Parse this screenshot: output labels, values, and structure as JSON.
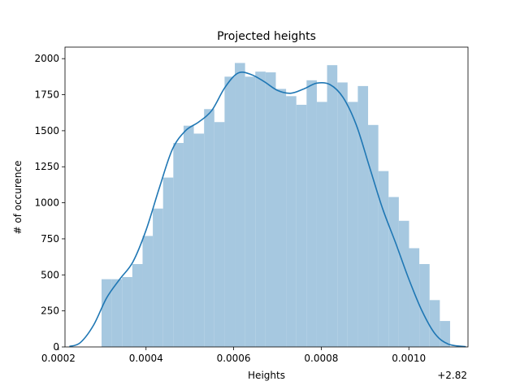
{
  "chart_data": {
    "type": "bar",
    "subtype": "histogram with kde",
    "title": "Projected heights",
    "xlabel": "Heights",
    "ylabel": "# of occurence",
    "x_offset_label": "+2.82",
    "xlim": [
      0.000215,
      0.001135
    ],
    "ylim": [
      0,
      2080
    ],
    "xticks": [
      0.0002,
      0.0004,
      0.0006,
      0.0008,
      0.001
    ],
    "xtick_labels": [
      "0.0002",
      "0.0004",
      "0.0006",
      "0.0008",
      "0.0010"
    ],
    "yticks": [
      0,
      250,
      500,
      750,
      1000,
      1250,
      1500,
      1750,
      2000
    ],
    "ytick_labels": [
      "0",
      "250",
      "500",
      "750",
      "1000",
      "1250",
      "1500",
      "1750",
      "2000"
    ],
    "bin_start": 0.0002985,
    "bin_width": 2.34e-05,
    "bin_counts": [
      470,
      470,
      485,
      575,
      770,
      960,
      1175,
      1415,
      1535,
      1480,
      1650,
      1560,
      1875,
      1970,
      1875,
      1910,
      1905,
      1790,
      1740,
      1680,
      1850,
      1700,
      1955,
      1835,
      1700,
      1810,
      1540,
      1220,
      1040,
      875,
      685,
      575,
      325,
      180
    ],
    "kde": {
      "x": [
        0.000225,
        0.00025,
        0.00028,
        0.00031,
        0.00034,
        0.00037,
        0.0004,
        0.00043,
        0.00046,
        0.00049,
        0.00052,
        0.00055,
        0.00058,
        0.00061,
        0.00064,
        0.00067,
        0.0007,
        0.00073,
        0.00076,
        0.00079,
        0.00082,
        0.00085,
        0.00088,
        0.00091,
        0.00094,
        0.00097,
        0.001,
        0.00103,
        0.00106,
        0.00109,
        0.00113
      ],
      "y": [
        3,
        30,
        150,
        340,
        470,
        590,
        810,
        1100,
        1370,
        1500,
        1560,
        1640,
        1800,
        1900,
        1890,
        1840,
        1780,
        1760,
        1790,
        1830,
        1820,
        1730,
        1540,
        1250,
        960,
        720,
        470,
        250,
        90,
        20,
        2
      ]
    },
    "colors": {
      "bars": "#a6c8e0",
      "kde": "#1f77b4"
    },
    "grid": false
  }
}
